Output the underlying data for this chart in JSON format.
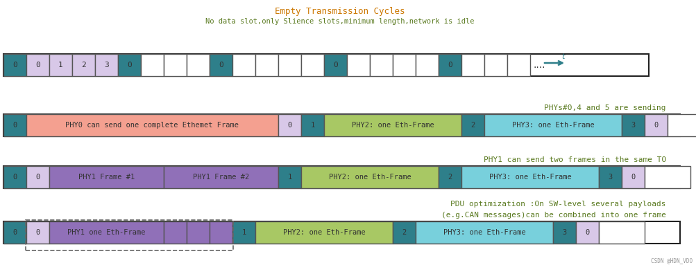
{
  "title_row1": "Empty Transmission Cycles",
  "subtitle_row1": "No data slot,only Slience slots,minimum length,network is idle",
  "title_row2": "PHYs#0,4 and 5 are sending",
  "title_row3": "PHY1 can send two frames in the same TO",
  "title_row4_line1": "PDU optimization :On SW-level several payloads",
  "title_row4_line2": "(e.g.CAN messages)can be combined into one frame",
  "bg_color": "#ffffff",
  "teal_color": "#2E7F8A",
  "lavender_color": "#D8C8E8",
  "pink_color": "#F4A090",
  "green_color": "#A8C864",
  "cyan_color": "#78D0DC",
  "purple_color": "#9070B8",
  "white_color": "#FFFFFF",
  "border_color": "#555555",
  "text_color": "#333333",
  "orange_text": "#CC7700",
  "green_text": "#5A7A20"
}
